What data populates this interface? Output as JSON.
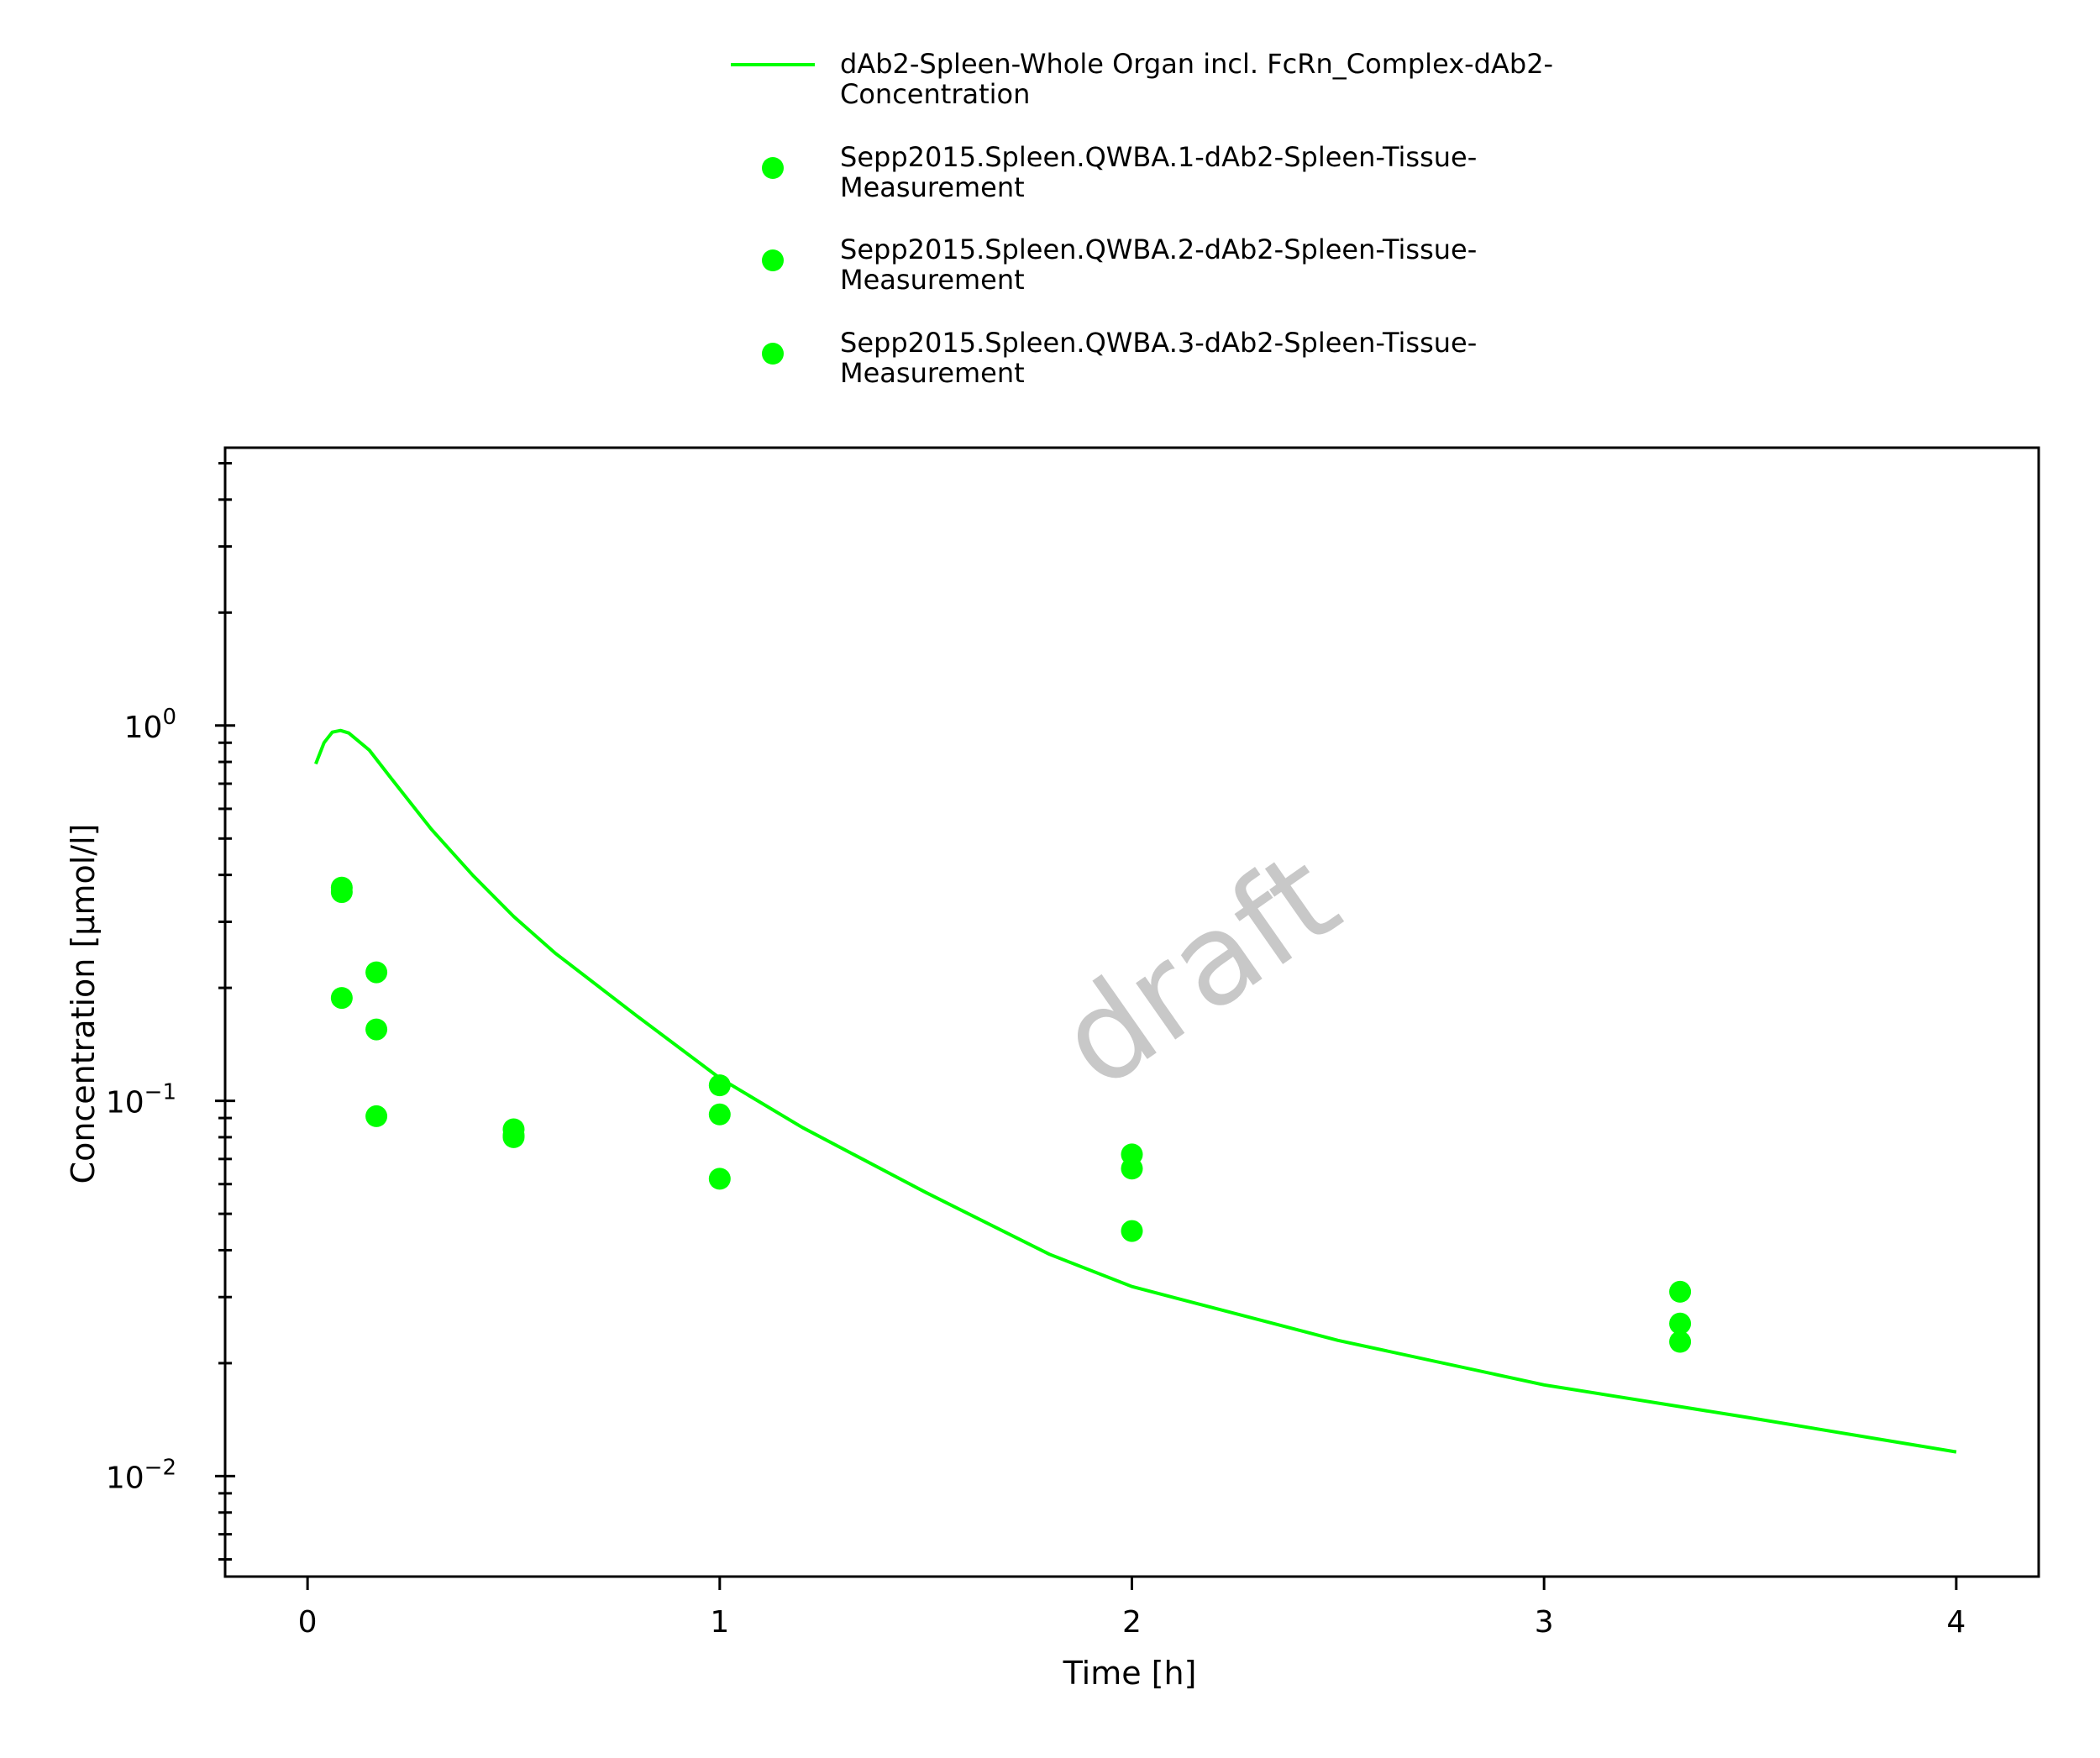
{
  "chart_data": {
    "type": "scatter",
    "xlabel": "Time [h]",
    "ylabel": "Concentration [µmol/l]",
    "xlim": [
      -0.2,
      4.2
    ],
    "ylim": [
      0.0054,
      5.5
    ],
    "yscale": "log",
    "x_ticks": [
      "0",
      "1",
      "2",
      "3",
      "4"
    ],
    "y_ticks": [
      {
        "base": "10",
        "exp": "0"
      },
      {
        "base": "10",
        "exp": "−1"
      },
      {
        "base": "10",
        "exp": "−2"
      }
    ],
    "grid": false,
    "legend_position": "top",
    "watermark": "draft",
    "color": "#00ff00",
    "series": [
      {
        "name": "dAb2-Spleen-Whole Organ incl. FcRn_Complex-dAb2-Concentration",
        "legend_lines": [
          "dAb2-Spleen-Whole Organ incl. FcRn_Complex-dAb2-",
          "Concentration"
        ],
        "type": "line",
        "x": [
          0.02,
          0.04,
          0.06,
          0.08,
          0.1,
          0.15,
          0.2,
          0.3,
          0.4,
          0.5,
          0.6,
          0.8,
          1.0,
          1.2,
          1.5,
          1.8,
          2.0,
          2.5,
          3.0,
          3.5,
          4.0
        ],
        "y": [
          0.79,
          0.9,
          0.96,
          0.97,
          0.955,
          0.86,
          0.73,
          0.53,
          0.4,
          0.31,
          0.248,
          0.168,
          0.115,
          0.085,
          0.057,
          0.039,
          0.032,
          0.023,
          0.0175,
          0.0143,
          0.0116
        ]
      },
      {
        "name": "Sepp2015.Spleen.QWBA.1-dAb2-Spleen-Tissue-Measurement",
        "legend_lines": [
          "Sepp2015.Spleen.QWBA.1-dAb2-Spleen-Tissue-",
          "Measurement"
        ],
        "type": "scatter",
        "x": [
          0.083,
          0.167,
          0.5,
          1.0,
          2.0,
          3.33
        ],
        "y": [
          0.37,
          0.22,
          0.084,
          0.11,
          0.072,
          0.031
        ]
      },
      {
        "name": "Sepp2015.Spleen.QWBA.2-dAb2-Spleen-Tissue-Measurement",
        "legend_lines": [
          "Sepp2015.Spleen.QWBA.2-dAb2-Spleen-Tissue-",
          "Measurement"
        ],
        "type": "scatter",
        "x": [
          0.083,
          0.167,
          0.5,
          1.0,
          2.0,
          3.33
        ],
        "y": [
          0.36,
          0.155,
          0.081,
          0.092,
          0.066,
          0.0255
        ]
      },
      {
        "name": "Sepp2015.Spleen.QWBA.3-dAb2-Spleen-Tissue-Measurement",
        "legend_lines": [
          "Sepp2015.Spleen.QWBA.3-dAb2-Spleen-Tissue-",
          "Measurement"
        ],
        "type": "scatter",
        "x": [
          0.083,
          0.167,
          0.5,
          1.0,
          2.0,
          3.33
        ],
        "y": [
          0.188,
          0.091,
          0.08,
          0.062,
          0.045,
          0.0228
        ]
      }
    ]
  }
}
